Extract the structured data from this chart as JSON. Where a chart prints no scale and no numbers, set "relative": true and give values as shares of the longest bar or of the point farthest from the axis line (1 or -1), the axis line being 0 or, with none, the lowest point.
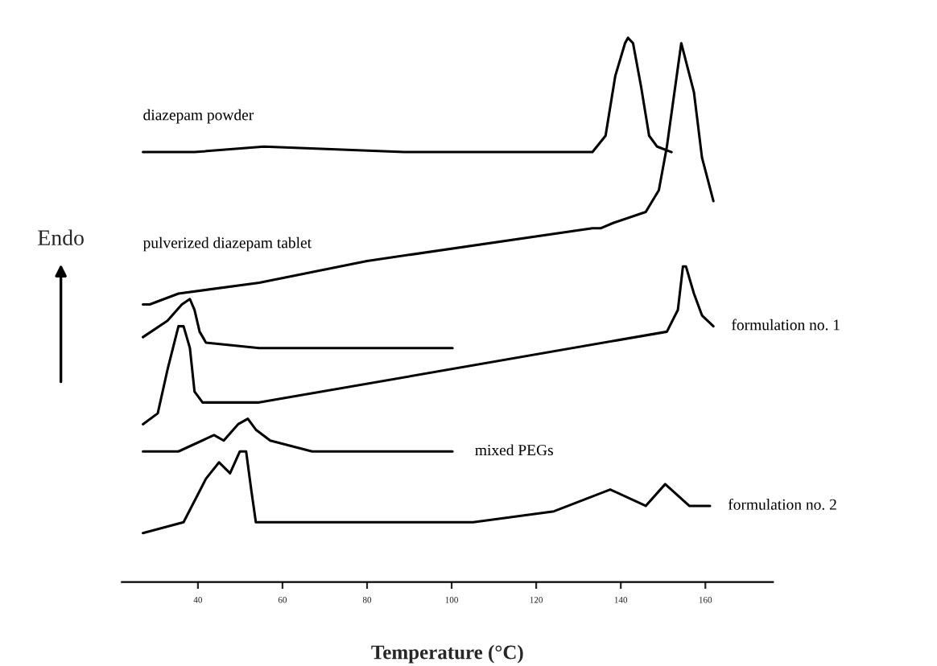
{
  "chart_data": {
    "type": "line",
    "relative": true,
    "xlabel": "Temperature (°C)",
    "ylabel": "Endo",
    "xlim": [
      22,
      176
    ],
    "xticks": [
      40,
      60,
      80,
      100,
      120,
      140,
      160
    ],
    "grid": false,
    "legend": false,
    "marker": "none",
    "line_style": "solid",
    "series": [
      {
        "name": "diazepam powder",
        "color": "#000000",
        "x": [
          27.0,
          39.2,
          55.6,
          88.8,
          133.3,
          136.4,
          138.7,
          141.0,
          141.7,
          142.9,
          144.8,
          146.7,
          148.6,
          152.0
        ],
        "values": [
          0.79,
          0.79,
          0.8,
          0.79,
          0.79,
          0.82,
          0.93,
          0.99,
          1.0,
          0.99,
          0.91,
          0.82,
          0.8,
          0.79
        ]
      },
      {
        "name": "pulverized diazepam tablet",
        "color": "#000000",
        "x": [
          27.0,
          28.6,
          35.4,
          54.5,
          80.0,
          133.3,
          135.2,
          138.3,
          145.9,
          149.0,
          150.9,
          154.3,
          157.3,
          159.2,
          161.9
        ],
        "values": [
          0.51,
          0.51,
          0.53,
          0.55,
          0.59,
          0.65,
          0.65,
          0.66,
          0.68,
          0.72,
          0.8,
          0.99,
          0.9,
          0.78,
          0.7
        ]
      },
      {
        "color": "#000000",
        "x": [
          27.0,
          32.8,
          36.2,
          38.1,
          39.2,
          40.4,
          41.9,
          54.5,
          100.2
        ],
        "values": [
          0.45,
          0.48,
          0.51,
          0.52,
          0.5,
          0.46,
          0.44,
          0.43,
          0.43
        ]
      },
      {
        "name": "formulation no. 1",
        "color": "#000000",
        "x": [
          27.0,
          30.5,
          32.8,
          35.4,
          36.6,
          38.1,
          39.2,
          41.1,
          54.5,
          150.9,
          153.5,
          154.7,
          155.4,
          157.3,
          159.2,
          161.9
        ],
        "values": [
          0.29,
          0.31,
          0.39,
          0.47,
          0.47,
          0.43,
          0.35,
          0.33,
          0.33,
          0.46,
          0.5,
          0.58,
          0.58,
          0.53,
          0.49,
          0.47
        ]
      },
      {
        "name": "mixed PEGs",
        "color": "#000000",
        "x": [
          27.0,
          35.4,
          43.8,
          46.1,
          49.5,
          51.8,
          53.7,
          57.1,
          67.0,
          100.2
        ],
        "values": [
          0.24,
          0.24,
          0.27,
          0.26,
          0.29,
          0.3,
          0.28,
          0.26,
          0.24,
          0.24
        ]
      },
      {
        "name": "formulation no. 2",
        "color": "#000000",
        "x": [
          27.0,
          36.6,
          41.9,
          45.0,
          47.6,
          49.9,
          51.4,
          52.6,
          53.7,
          67.0,
          105.1,
          124.2,
          137.5,
          145.9,
          150.5,
          156.2,
          161.1
        ],
        "values": [
          0.09,
          0.11,
          0.19,
          0.22,
          0.2,
          0.24,
          0.24,
          0.17,
          0.11,
          0.11,
          0.11,
          0.13,
          0.17,
          0.14,
          0.18,
          0.14,
          0.14
        ]
      }
    ]
  }
}
